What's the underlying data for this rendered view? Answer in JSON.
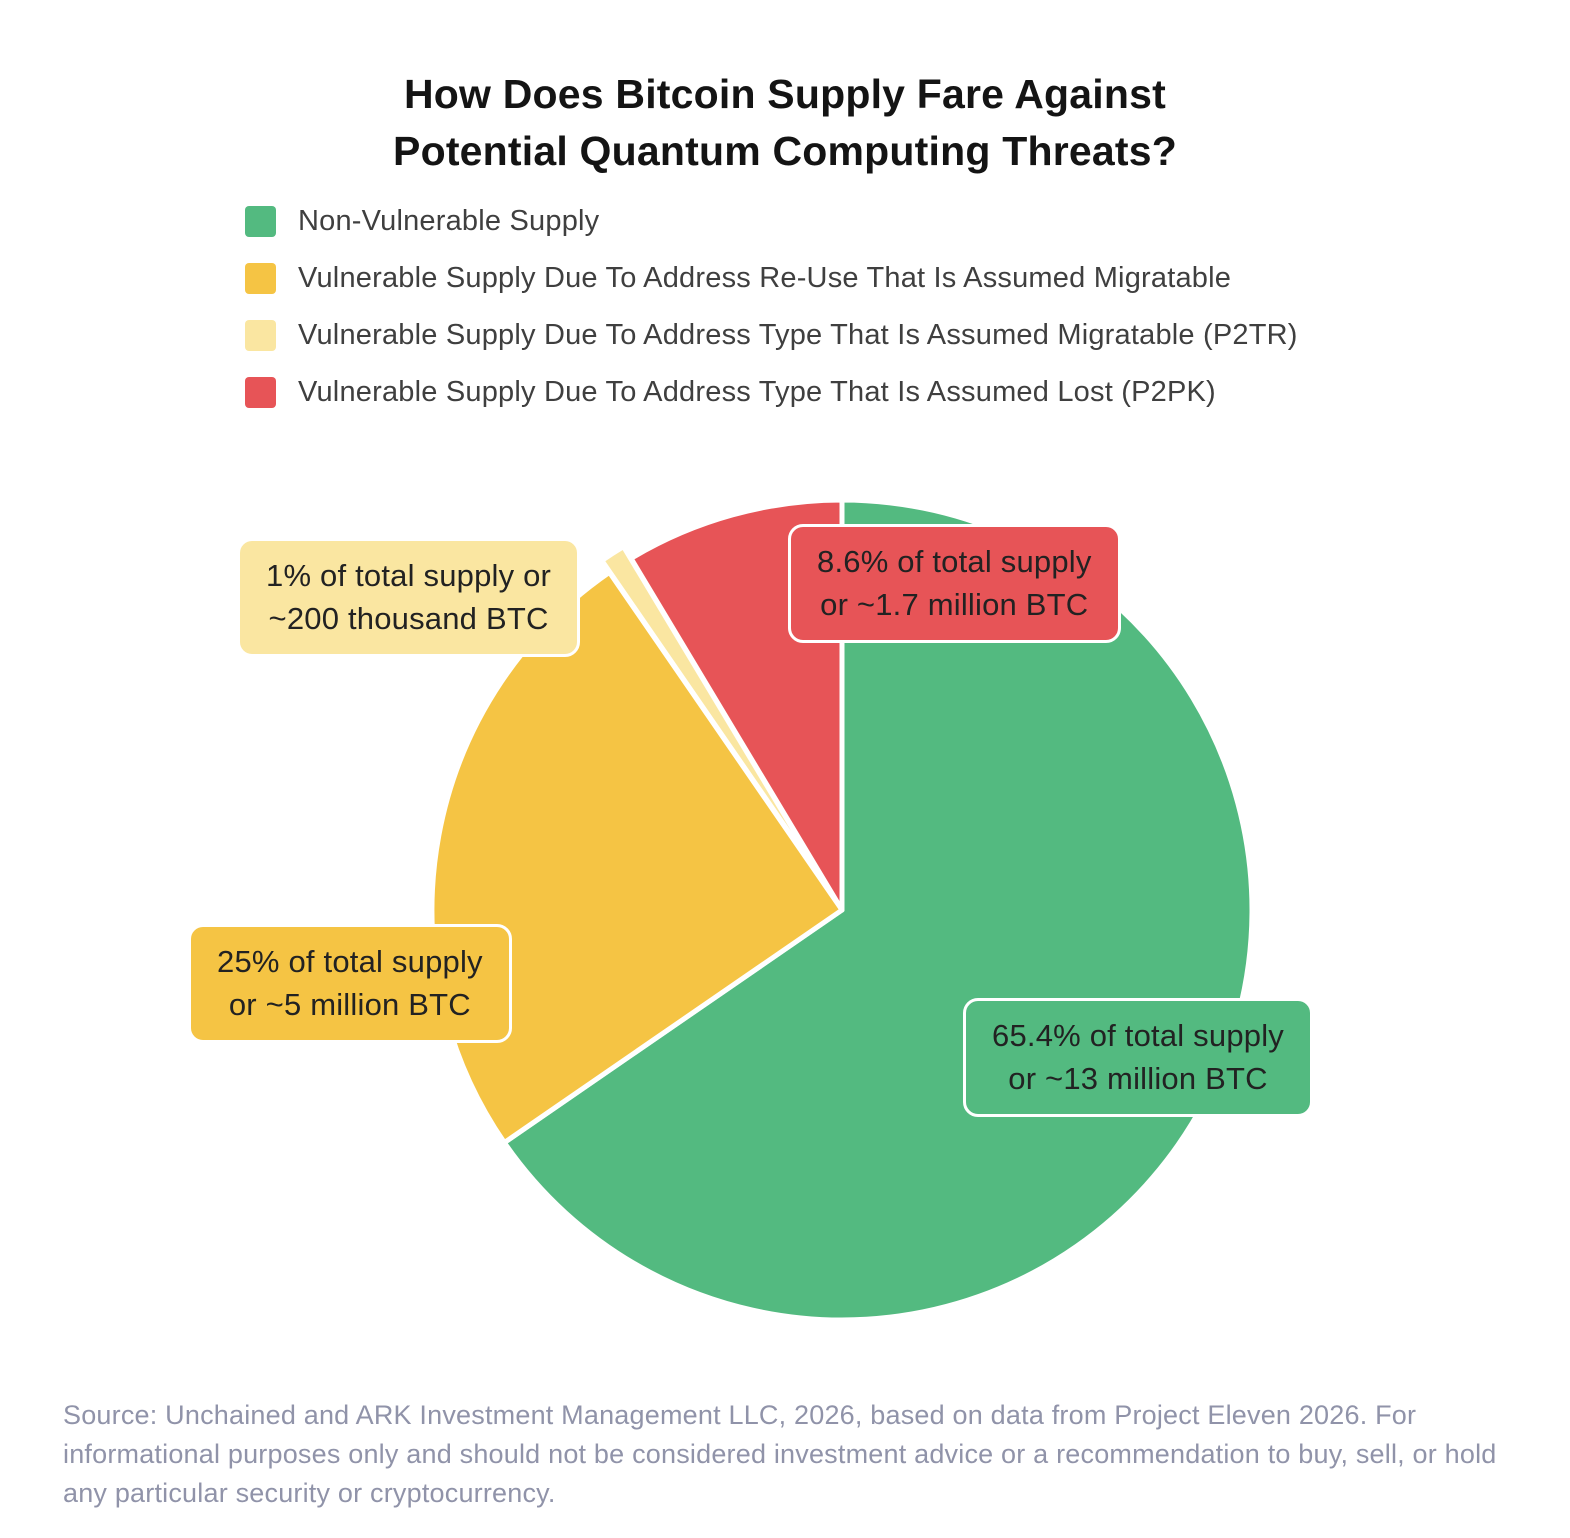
{
  "title": {
    "line1": "How Does Bitcoin Supply Fare Against",
    "line2": "Potential Quantum Computing Threats?"
  },
  "chart_data": {
    "type": "pie",
    "title": "How Does Bitcoin Supply Fare Against Potential Quantum Computing Threats?",
    "direction": "clockwise",
    "start_angle_deg": 0,
    "legend_position": "top-left",
    "slices": [
      {
        "label": "Non-Vulnerable Supply",
        "percent": 65.4,
        "amount": "~13 million BTC",
        "color": "#53BA80",
        "callout_line1": "65.4% of total supply",
        "callout_line2": "or ~13 million BTC"
      },
      {
        "label": "Vulnerable Supply Due To Address Re-Use That Is Assumed Migratable",
        "percent": 25,
        "amount": "~5 million BTC",
        "color": "#F5C444",
        "callout_line1": "25% of total supply",
        "callout_line2": "or ~5 million BTC"
      },
      {
        "label": "Vulnerable Supply Due To Address Type That Is Assumed Migratable (P2TR)",
        "percent": 1,
        "amount": "~200 thousand BTC",
        "color": "#FAE6A1",
        "exploded": true,
        "callout_line1": "1% of total supply or",
        "callout_line2": "~200 thousand BTC"
      },
      {
        "label": "Vulnerable Supply Due To Address Type That Is Assumed Lost (P2PK)",
        "percent": 8.6,
        "amount": "~1.7 million BTC",
        "color": "#E75457",
        "callout_line1": "8.6% of total supply",
        "callout_line2": "or ~1.7 million BTC"
      }
    ]
  },
  "source": "Source: Unchained and ARK Investment Management LLC, 2026, based on data from Project Eleven 2026. For informational purposes only and should not be considered investment advice or a recommendation to buy, sell, or hold any particular security or cryptocurrency."
}
